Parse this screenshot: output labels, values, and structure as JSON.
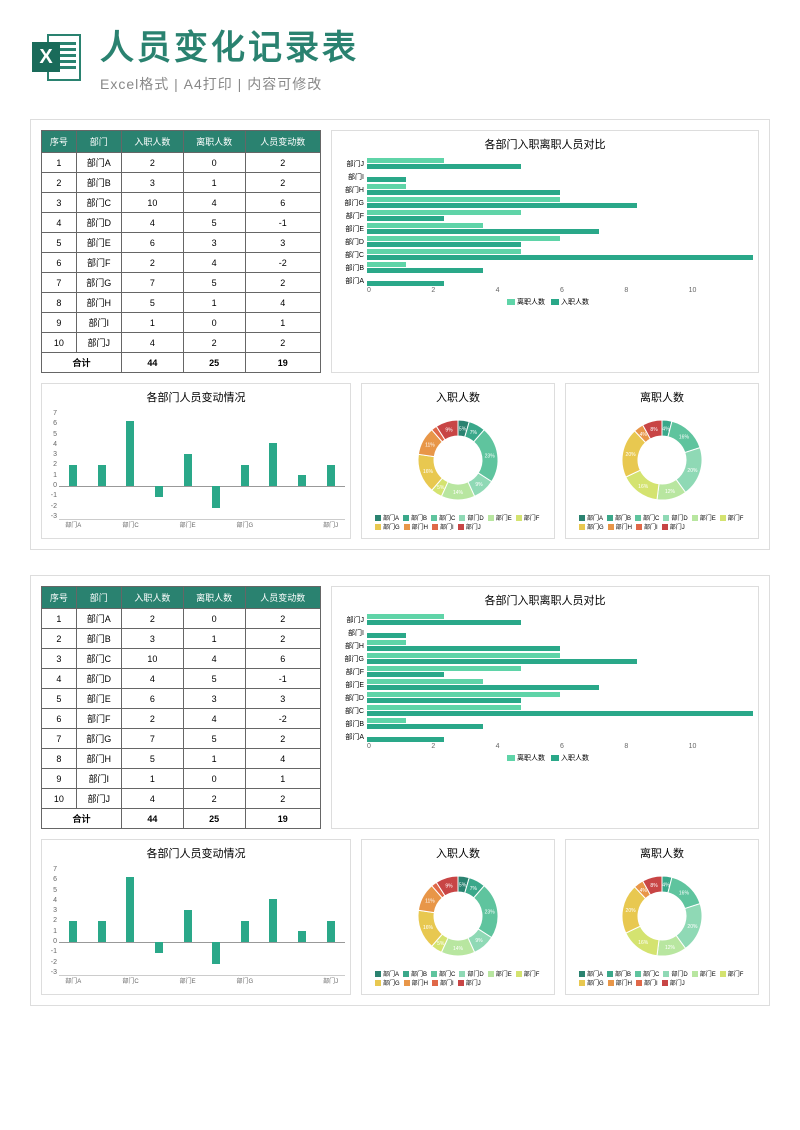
{
  "header": {
    "title": "人员变化记录表",
    "subtitle": "Excel格式  |  A4打印  |  内容可修改"
  },
  "colors": {
    "theme": "#2a8270",
    "bar1": "#5fd4a8",
    "bar2": "#2aa889",
    "vbar": "#2aa889",
    "donut": [
      "#2a8270",
      "#3aa88a",
      "#5fc49e",
      "#8fd9b5",
      "#b8e6a0",
      "#d4e370",
      "#e8c850",
      "#e89648",
      "#e06848",
      "#c84545"
    ]
  },
  "table": {
    "headers": [
      "序号",
      "部门",
      "入职人数",
      "离职人数",
      "人员变动数"
    ],
    "rows": [
      [
        "1",
        "部门A",
        "2",
        "0",
        "2"
      ],
      [
        "2",
        "部门B",
        "3",
        "1",
        "2"
      ],
      [
        "3",
        "部门C",
        "10",
        "4",
        "6"
      ],
      [
        "4",
        "部门D",
        "4",
        "5",
        "-1"
      ],
      [
        "5",
        "部门E",
        "6",
        "3",
        "3"
      ],
      [
        "6",
        "部门F",
        "2",
        "4",
        "-2"
      ],
      [
        "7",
        "部门G",
        "7",
        "5",
        "2"
      ],
      [
        "8",
        "部门H",
        "5",
        "1",
        "4"
      ],
      [
        "9",
        "部门I",
        "1",
        "0",
        "1"
      ],
      [
        "10",
        "部门J",
        "4",
        "2",
        "2"
      ]
    ],
    "total": [
      "合计",
      "",
      "44",
      "25",
      "19"
    ]
  },
  "hbar": {
    "title": "各部门入职离职人员对比",
    "max": 10,
    "ticks": [
      "0",
      "2",
      "4",
      "6",
      "8",
      "10"
    ],
    "legend": [
      "离职人数",
      "入职人数"
    ],
    "categories": [
      "部门J",
      "部门I",
      "部门H",
      "部门G",
      "部门F",
      "部门E",
      "部门D",
      "部门C",
      "部门B",
      "部门A"
    ],
    "series1": [
      2,
      0,
      1,
      5,
      4,
      3,
      5,
      4,
      1,
      0
    ],
    "series2": [
      4,
      1,
      5,
      7,
      2,
      6,
      4,
      10,
      3,
      2
    ]
  },
  "vbar": {
    "title": "各部门人员变动情况",
    "ymin": -3,
    "ymax": 7,
    "yticks": [
      "7",
      "6",
      "5",
      "4",
      "3",
      "2",
      "1",
      "0",
      "-1",
      "-2",
      "-3"
    ],
    "categories": [
      "部门A",
      "部门B",
      "部门C",
      "部门D",
      "部门E",
      "部门F",
      "部门G",
      "部门H",
      "部门I",
      "部门J"
    ],
    "xlabels_shown": [
      "部门A",
      "",
      "部门C",
      "",
      "部门E",
      "",
      "部门G",
      "",
      "",
      "部门J"
    ],
    "values": [
      2,
      2,
      6,
      -1,
      3,
      -2,
      2,
      4,
      1,
      2
    ]
  },
  "donut1": {
    "title": "入职人数",
    "labels": [
      "部门A",
      "部门B",
      "部门C",
      "部门D",
      "部门E",
      "部门F",
      "部门G",
      "部门H",
      "部门I",
      "部门J"
    ],
    "values": [
      2,
      3,
      10,
      4,
      6,
      2,
      7,
      5,
      1,
      4
    ],
    "pct": [
      "5%",
      "7%",
      "23%",
      "9%",
      "14%",
      "5%",
      "16%",
      "11%",
      "2%",
      "9%"
    ]
  },
  "donut2": {
    "title": "离职人数",
    "labels": [
      "部门A",
      "部门B",
      "部门C",
      "部门D",
      "部门E",
      "部门F",
      "部门G",
      "部门H",
      "部门I",
      "部门J"
    ],
    "values": [
      0,
      1,
      4,
      5,
      3,
      4,
      5,
      1,
      0,
      2
    ],
    "pct": [
      "0%",
      "4%",
      "16%",
      "20%",
      "12%",
      "16%",
      "20%",
      "4%",
      "0%",
      "8%"
    ]
  }
}
